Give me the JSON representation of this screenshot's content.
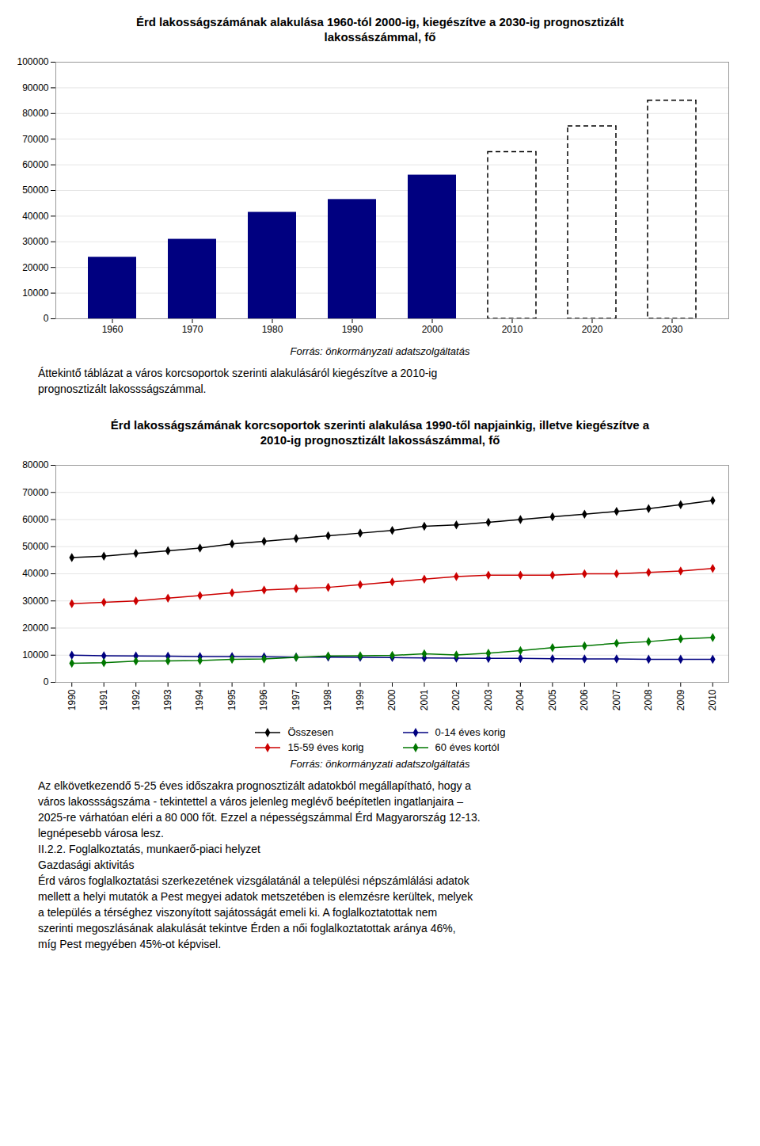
{
  "chart_data": [
    {
      "type": "bar",
      "title": "Érd lakosságszámának alakulása 1960-tól 2000-ig, kiegészítve a 2030-ig prognosztizált\nlakossászámmal, fő",
      "categories": [
        "1960",
        "1970",
        "1980",
        "1990",
        "2000",
        "2010",
        "2020",
        "2030"
      ],
      "series": [
        {
          "color": "#000080",
          "line_style": "solid",
          "values": [
            24000,
            31000,
            41500,
            46500,
            56000,
            null,
            null,
            null
          ]
        },
        {
          "color": "#000000",
          "line_style": "dashed",
          "values": [
            null,
            null,
            null,
            null,
            null,
            65000,
            75000,
            85000
          ]
        }
      ],
      "ylim": [
        0,
        100000
      ],
      "yticks": [
        0,
        10000,
        20000,
        30000,
        40000,
        50000,
        60000,
        70000,
        80000,
        90000,
        100000
      ],
      "grid": true,
      "annotations": [
        "Forrás: önkormányzati adatszolgáltatás",
        "Áttekintő táblázat a város korcsoportok szerinti alakulásáról kiegészítve a 2010-ig",
        "prognosztizált lakossságszámmal."
      ]
    },
    {
      "type": "line",
      "title": "Érd lakosságszámának korcsoportok szerinti alakulása 1990-től napjainkig, illetve kiegészítve a\n2010-ig prognosztizált lakossászámmal, fő",
      "x": [
        1990,
        1991,
        1992,
        1993,
        1994,
        1995,
        1996,
        1997,
        1998,
        1999,
        2000,
        2001,
        2002,
        2003,
        2004,
        2005,
        2006,
        2007,
        2008,
        2009,
        2010
      ],
      "series": [
        {
          "name": "Összesen",
          "color": "#000000",
          "marker": "diamond",
          "values": [
            46000,
            46500,
            47500,
            48500,
            49500,
            51000,
            52000,
            53000,
            54000,
            55000,
            56000,
            57500,
            58000,
            59000,
            60000,
            61000,
            62000,
            63000,
            64000,
            65500,
            67000
          ]
        },
        {
          "name": "0-14 éves korig",
          "color": "#000080",
          "marker": "diamond",
          "values": [
            10000,
            9800,
            9700,
            9600,
            9500,
            9500,
            9400,
            9300,
            9300,
            9200,
            9100,
            9000,
            8900,
            8800,
            8800,
            8700,
            8600,
            8600,
            8500,
            8500,
            8500
          ]
        },
        {
          "name": "15-59 éves korig",
          "color": "#cc0000",
          "marker": "diamond",
          "values": [
            29000,
            29500,
            30000,
            31000,
            32000,
            33000,
            34000,
            34500,
            35000,
            36000,
            37000,
            38000,
            39000,
            39500,
            39500,
            39500,
            40000,
            40000,
            40500,
            41000,
            42000
          ]
        },
        {
          "name": "60 éves kortól",
          "color": "#007700",
          "marker": "diamond",
          "values": [
            7000,
            7200,
            7800,
            7900,
            8000,
            8500,
            8600,
            9200,
            9700,
            9800,
            9900,
            10500,
            10100,
            10700,
            11700,
            12800,
            13400,
            14400,
            15000,
            16000,
            16500
          ]
        }
      ],
      "xlim": [
        1989.5,
        2010.5
      ],
      "xticks": [
        1990,
        1991,
        1992,
        1993,
        1994,
        1995,
        1996,
        1997,
        1998,
        1999,
        2000,
        2001,
        2002,
        2003,
        2004,
        2005,
        2006,
        2007,
        2008,
        2009,
        2010
      ],
      "ylim": [
        0,
        80000
      ],
      "yticks": [
        0,
        10000,
        20000,
        30000,
        40000,
        50000,
        60000,
        70000,
        80000
      ],
      "grid": true,
      "legend": "bottom",
      "annotations": [
        "Forrás: önkormányzati adatszolgáltatás",
        "Az elkövetkezendő 5-25 éves időszakra prognosztizált adatokból megállapítható, hogy a",
        "város lakossságszáma - tekintettel a város jelenleg meglévő beépítetlen ingatlanjaira –",
        "2025-re várhatóan eléri a 80 000 főt. Ezzel a népességszámmal Érd Magyarország 12-13.",
        "legnépesebb városa lesz.",
        "II.2.2. Foglalkoztatás, munkaerő-piaci helyzet",
        "Gazdasági aktivitás",
        "Érd város foglalkoztatási szerkezetének vizsgálatánál a települési népszámlálási adatok",
        "mellett a helyi mutatók a Pest megyei adatok metszetében is elemzésre kerültek, melyek",
        "a település a térséghez viszonyított sajátosságát emeli ki. A foglalkoztatottak nem",
        "szerinti megoszlásának alakulását tekintve Érden a női foglalkoztatottak aránya 46%,",
        "míg Pest megyében 45%-ot képvisel."
      ]
    }
  ]
}
